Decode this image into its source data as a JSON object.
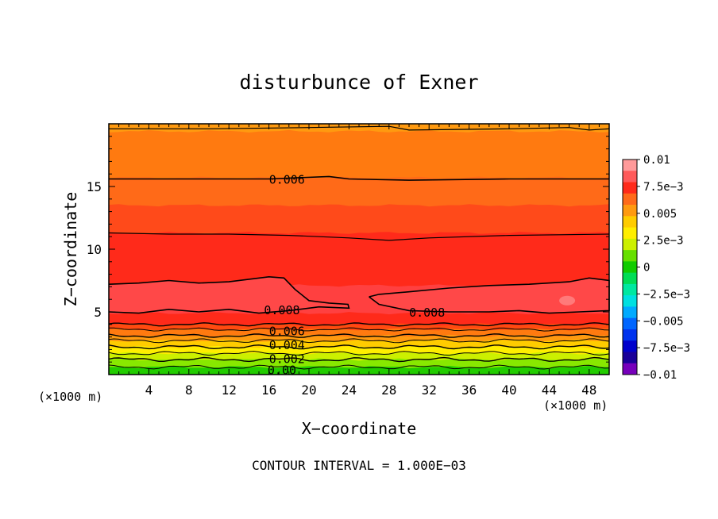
{
  "chart_data": {
    "type": "heatmap",
    "title": "disturbunce of Exner",
    "xlabel": "X−coordinate",
    "ylabel": "Z−coordinate",
    "x_unit_left": "(×1000 m)",
    "x_unit_right": "(×1000 m)",
    "footer": "CONTOUR INTERVAL = 1.000E−03",
    "xlim": [
      0,
      50
    ],
    "ylim": [
      0,
      20
    ],
    "x_ticks": [
      4,
      8,
      12,
      16,
      20,
      24,
      28,
      32,
      36,
      40,
      44,
      48
    ],
    "y_ticks": [
      5,
      10,
      15
    ],
    "colorbar": {
      "range": [
        -0.01,
        0.01
      ],
      "labels": [
        "0.01",
        "7.5e−3",
        "0.005",
        "2.5e−3",
        "0",
        "−2.5e−3",
        "−0.005",
        "−7.5e−3",
        "−0.01"
      ],
      "colors": [
        "#ff9a9a",
        "#ff5a5a",
        "#ff2a1a",
        "#ff6a1a",
        "#ff9a10",
        "#ffcc00",
        "#ffee00",
        "#ccf000",
        "#66e000",
        "#11cc00",
        "#00dd55",
        "#00e8a0",
        "#00e0e0",
        "#00aaff",
        "#0066ff",
        "#0033ee",
        "#0000cc",
        "#1a0099",
        "#7700bb"
      ]
    },
    "contour_labels": [
      {
        "text": "0.006",
        "x": 17.8,
        "z": 15.6
      },
      {
        "text": "0.008",
        "x": 17.3,
        "z": 5.2
      },
      {
        "text": "0.008",
        "x": 31.8,
        "z": 5.0
      },
      {
        "text": "0.006",
        "x": 17.8,
        "z": 3.5
      },
      {
        "text": "0.004",
        "x": 17.8,
        "z": 2.4
      },
      {
        "text": "0.002",
        "x": 17.8,
        "z": 1.3
      },
      {
        "text": "0.00",
        "x": 17.3,
        "z": 0.4
      }
    ],
    "bands": [
      {
        "value": 0.0048,
        "z_top": 20,
        "color": "#ff9a10"
      },
      {
        "value": 0.0055,
        "z_top": 19.4,
        "color": "#ff7a10"
      },
      {
        "value": 0.0062,
        "z_top": 15.7,
        "color": "#ff6a18"
      },
      {
        "value": 0.0068,
        "z_top": 13.5,
        "color": "#ff4a1a"
      },
      {
        "value": 0.0075,
        "z_top": 11.3,
        "color": "#ff2a1a"
      },
      {
        "value": 0.0082,
        "z_top": 7.1,
        "color": "#ff4040"
      },
      {
        "value": 0.0075,
        "z_top": 4.9,
        "color": "#ff2a1a"
      },
      {
        "value": 0.0068,
        "z_top": 4.0,
        "color": "#ff4a10"
      },
      {
        "value": 0.0062,
        "z_top": 3.6,
        "color": "#ff7a10"
      },
      {
        "value": 0.0055,
        "z_top": 3.1,
        "color": "#ff9a10"
      },
      {
        "value": 0.0045,
        "z_top": 2.7,
        "color": "#ffcc00"
      },
      {
        "value": 0.0035,
        "z_top": 2.2,
        "color": "#ffee00"
      },
      {
        "value": 0.0025,
        "z_top": 1.7,
        "color": "#ccf000"
      },
      {
        "value": 0.0015,
        "z_top": 1.2,
        "color": "#88e800"
      },
      {
        "value": 0.0005,
        "z_top": 0.6,
        "color": "#22cc00"
      }
    ]
  }
}
